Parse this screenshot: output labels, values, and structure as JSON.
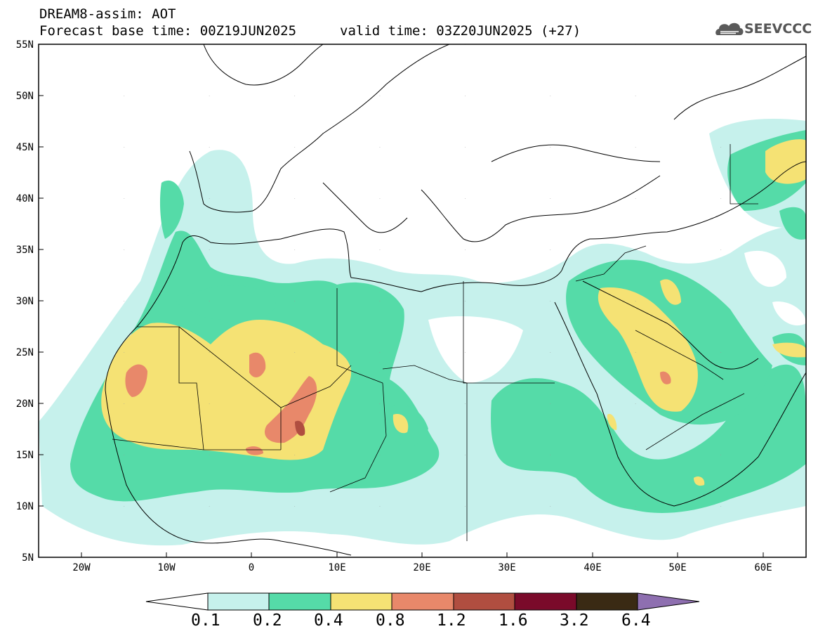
{
  "header": {
    "title": "DREAM8-assim: AOT",
    "base_time": "Forecast base time: 00Z19JUN2025",
    "valid_time": "valid time: 03Z20JUN2025 (+27)"
  },
  "logo": {
    "text": "SEEVCCC",
    "icon": "cloud-icon"
  },
  "map": {
    "lat_labels": [
      "55N",
      "50N",
      "45N",
      "40N",
      "35N",
      "30N",
      "25N",
      "20N",
      "15N",
      "10N",
      "5N"
    ],
    "lon_labels": [
      "20W",
      "10W",
      "0",
      "10E",
      "20E",
      "30E",
      "40E",
      "50E",
      "60E"
    ],
    "extent": {
      "lon_min": -25,
      "lon_max": 65,
      "lat_min": 5,
      "lat_max": 55
    }
  },
  "colorbar": {
    "levels": [
      "0.1",
      "0.2",
      "0.4",
      "0.8",
      "1.2",
      "1.6",
      "3.2",
      "6.4"
    ],
    "colors": [
      "#ffffff",
      "#c6f1ec",
      "#55dba8",
      "#f5e274",
      "#e8886a",
      "#b04e40",
      "#7a0a2a",
      "#3a2a14",
      "#8e6fb0"
    ]
  },
  "colors": {
    "aot_0_1": "#c6f1ec",
    "aot_0_2": "#55dba8",
    "aot_0_4": "#f5e274",
    "aot_0_8": "#e8886a",
    "aot_1_2": "#b04e40"
  }
}
